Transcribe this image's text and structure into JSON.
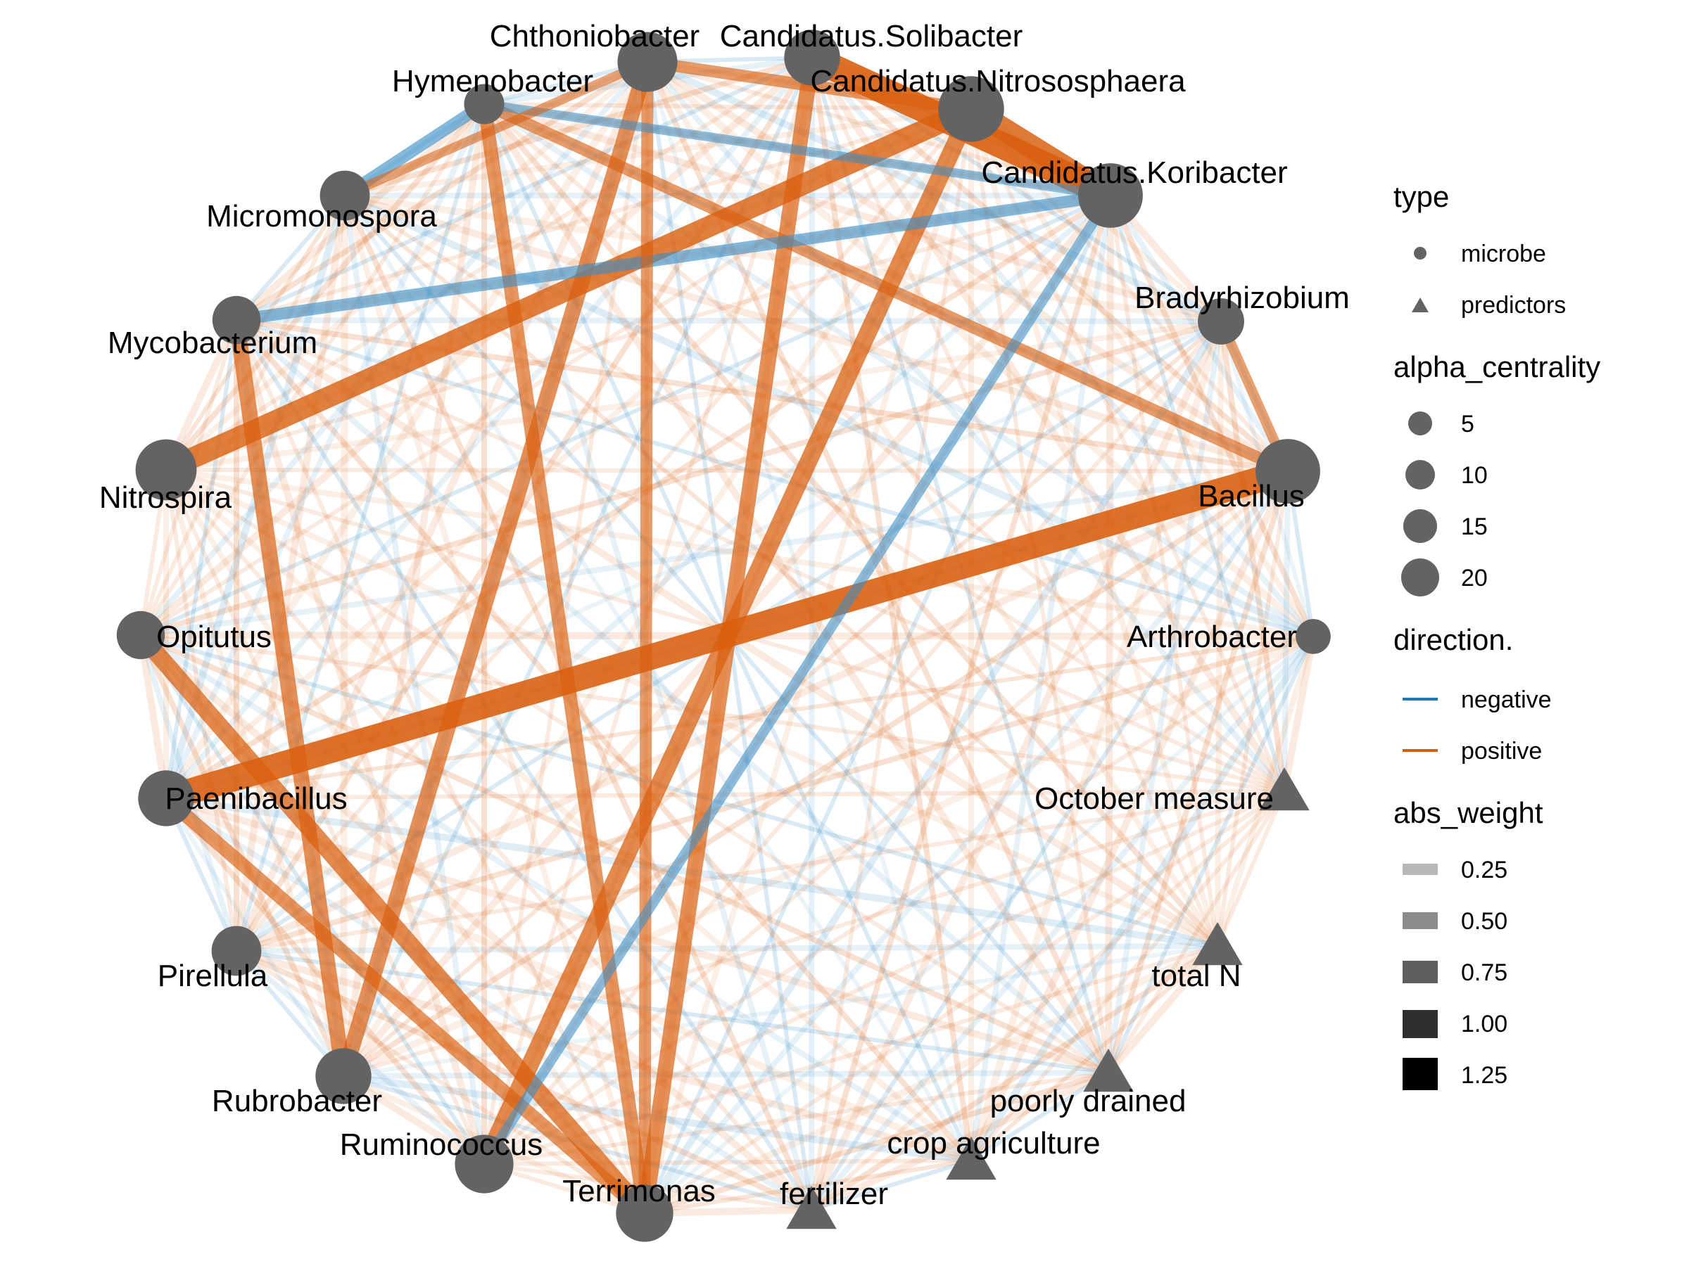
{
  "colors": {
    "negative": "#3b8fc7",
    "positive": "#d95f0e",
    "node": "#636363"
  },
  "nodes": [
    {
      "id": "chthoniobacter",
      "label": "Chthoniobacter",
      "type": "microbe",
      "alpha_centrality": 17
    },
    {
      "id": "solibacter",
      "label": "Candidatus.Solibacter",
      "type": "microbe",
      "alpha_centrality": 14
    },
    {
      "id": "nitrososphaera",
      "label": "Candidatus.Nitrososphaera",
      "type": "microbe",
      "alpha_centrality": 22
    },
    {
      "id": "koribacter",
      "label": "Candidatus.Koribacter",
      "type": "microbe",
      "alpha_centrality": 21
    },
    {
      "id": "bradyrhizobium",
      "label": "Bradyrhizobium",
      "type": "microbe",
      "alpha_centrality": 8
    },
    {
      "id": "bacillus",
      "label": "Bacillus",
      "type": "microbe",
      "alpha_centrality": 21
    },
    {
      "id": "arthrobacter",
      "label": "Arthrobacter",
      "type": "microbe",
      "alpha_centrality": 3
    },
    {
      "id": "october",
      "label": "October measure",
      "type": "predictors",
      "alpha_centrality": 10
    },
    {
      "id": "totaln",
      "label": "total N",
      "type": "predictors",
      "alpha_centrality": 10
    },
    {
      "id": "poorly",
      "label": "poorly drained",
      "type": "predictors",
      "alpha_centrality": 10
    },
    {
      "id": "crop",
      "label": "crop agriculture",
      "type": "predictors",
      "alpha_centrality": 10
    },
    {
      "id": "fertilizer",
      "label": "fertilizer",
      "type": "predictors",
      "alpha_centrality": 10
    },
    {
      "id": "terrimonas",
      "label": "Terrimonas",
      "type": "microbe",
      "alpha_centrality": 15
    },
    {
      "id": "ruminococcus",
      "label": "Ruminococcus",
      "type": "microbe",
      "alpha_centrality": 16
    },
    {
      "id": "rubrobacter",
      "label": "Rubrobacter",
      "type": "microbe",
      "alpha_centrality": 14
    },
    {
      "id": "pirellula",
      "label": "Pirellula",
      "type": "microbe",
      "alpha_centrality": 10
    },
    {
      "id": "paenibacillus",
      "label": "Paenibacillus",
      "type": "microbe",
      "alpha_centrality": 14
    },
    {
      "id": "opitutus",
      "label": "Opitutus",
      "type": "microbe",
      "alpha_centrality": 9
    },
    {
      "id": "nitrospira",
      "label": "Nitrospira",
      "type": "microbe",
      "alpha_centrality": 18
    },
    {
      "id": "mycobacterium",
      "label": "Mycobacterium",
      "type": "microbe",
      "alpha_centrality": 9
    },
    {
      "id": "micromonospora",
      "label": "Micromonospora",
      "type": "microbe",
      "alpha_centrality": 10
    },
    {
      "id": "hymenobacter",
      "label": "Hymenobacter",
      "type": "microbe",
      "alpha_centrality": 5
    }
  ],
  "strong_edges": [
    {
      "from": "solibacter",
      "to": "koribacter",
      "direction": "positive",
      "abs_weight": 1.3
    },
    {
      "from": "nitrososphaera",
      "to": "koribacter",
      "direction": "positive",
      "abs_weight": 1.1
    },
    {
      "from": "nitrososphaera",
      "to": "nitrospira",
      "direction": "positive",
      "abs_weight": 1.0
    },
    {
      "from": "bacillus",
      "to": "paenibacillus",
      "direction": "positive",
      "abs_weight": 1.25
    },
    {
      "from": "nitrososphaera",
      "to": "ruminococcus",
      "direction": "positive",
      "abs_weight": 0.8
    },
    {
      "from": "solibacter",
      "to": "terrimonas",
      "direction": "positive",
      "abs_weight": 0.7
    },
    {
      "from": "chthoniobacter",
      "to": "rubrobacter",
      "direction": "positive",
      "abs_weight": 0.7
    },
    {
      "from": "mycobacterium",
      "to": "rubrobacter",
      "direction": "positive",
      "abs_weight": 0.7
    },
    {
      "from": "opitutus",
      "to": "terrimonas",
      "direction": "positive",
      "abs_weight": 0.8
    },
    {
      "from": "paenibacillus",
      "to": "terrimonas",
      "direction": "positive",
      "abs_weight": 0.6
    },
    {
      "from": "hymenobacter",
      "to": "terrimonas",
      "direction": "positive",
      "abs_weight": 0.6
    },
    {
      "from": "hymenobacter",
      "to": "bacillus",
      "direction": "positive",
      "abs_weight": 0.5
    },
    {
      "from": "mycobacterium",
      "to": "koribacter",
      "direction": "negative",
      "abs_weight": 0.5
    },
    {
      "from": "micromonospora",
      "to": "hymenobacter",
      "direction": "negative",
      "abs_weight": 0.5
    },
    {
      "from": "chthoniobacter",
      "to": "nitrososphaera",
      "direction": "positive",
      "abs_weight": 0.5
    },
    {
      "from": "chthoniobacter",
      "to": "terrimonas",
      "direction": "positive",
      "abs_weight": 0.5
    },
    {
      "from": "koribacter",
      "to": "ruminococcus",
      "direction": "negative",
      "abs_weight": 0.4
    },
    {
      "from": "bacillus",
      "to": "bradyrhizobium",
      "direction": "positive",
      "abs_weight": 0.4
    },
    {
      "from": "hymenobacter",
      "to": "koribacter",
      "direction": "negative",
      "abs_weight": 0.35
    },
    {
      "from": "chthoniobacter",
      "to": "micromonospora",
      "direction": "positive",
      "abs_weight": 0.35
    }
  ],
  "legend": {
    "type": {
      "title": "type",
      "items": [
        {
          "shape": "circle",
          "label": "microbe"
        },
        {
          "shape": "triangle",
          "label": "predictors"
        }
      ]
    },
    "alpha_centrality": {
      "title": "alpha_centrality",
      "items": [
        {
          "value": 5,
          "label": "5"
        },
        {
          "value": 10,
          "label": "10"
        },
        {
          "value": 15,
          "label": "15"
        },
        {
          "value": 20,
          "label": "20"
        }
      ]
    },
    "direction": {
      "title": "direction.",
      "items": [
        {
          "key": "negative",
          "label": "negative"
        },
        {
          "key": "positive",
          "label": "positive"
        }
      ]
    },
    "abs_weight": {
      "title": "abs_weight",
      "items": [
        {
          "value": 0.25,
          "label": "0.25",
          "color": "#b8b8b8"
        },
        {
          "value": 0.5,
          "label": "0.50",
          "color": "#8c8c8c"
        },
        {
          "value": 0.75,
          "label": "0.75",
          "color": "#5e5e5e"
        },
        {
          "value": 1.0,
          "label": "1.00",
          "color": "#2f2f2f"
        },
        {
          "value": 1.25,
          "label": "1.25",
          "color": "#000000"
        }
      ]
    }
  }
}
